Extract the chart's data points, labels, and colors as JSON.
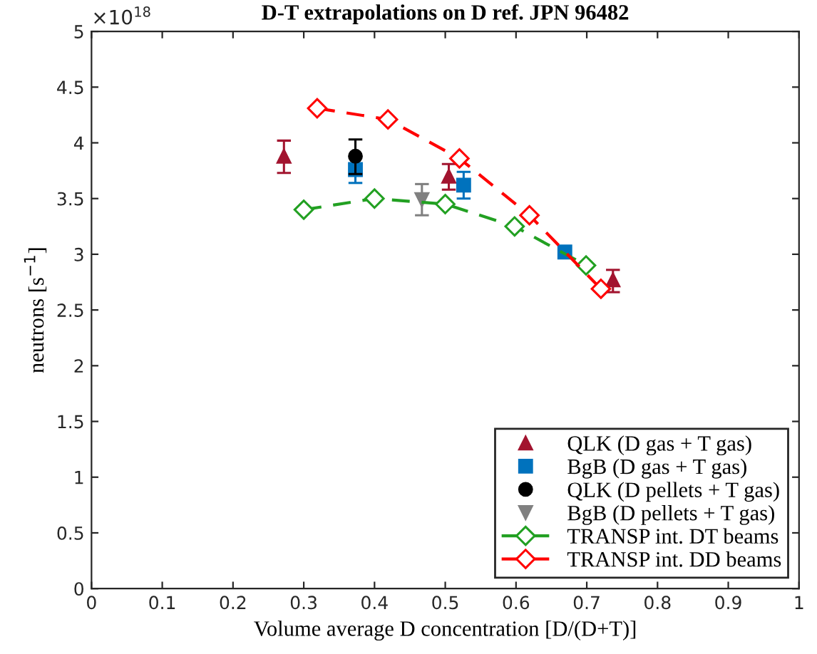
{
  "chart_data": {
    "type": "scatter",
    "title": "D-T extrapolations on D ref. JPN 96482",
    "xlabel": "Volume average D concentration [D/(D+T)]",
    "ylabel": "neutrons [s$^{−1}$]",
    "annotations": [
      "×10$^{18}$"
    ],
    "xlim": [
      0,
      1
    ],
    "xticks": [
      0,
      0.1,
      0.2,
      0.3,
      0.4,
      0.5,
      0.6,
      0.7,
      0.8,
      0.9,
      1
    ],
    "ylim": [
      0,
      5
    ],
    "yticks": [
      0,
      0.5,
      1,
      1.5,
      2,
      2.5,
      3,
      3.5,
      4,
      4.5,
      5
    ],
    "grid": false,
    "legend": "bottom right",
    "series": [
      {
        "name": "QLK (D gas + T gas)",
        "marker": "triangle",
        "color": "#a2142f",
        "x": [
          0.272,
          0.505,
          0.737
        ],
        "values": [
          3.88,
          3.7,
          2.77
        ],
        "errors": [
          [
            3.73,
            4.02
          ],
          [
            3.58,
            3.81
          ],
          [
            2.66,
            2.86
          ]
        ]
      },
      {
        "name": "BgB (D gas + T gas)",
        "marker": "square",
        "color": "#0072bd",
        "x": [
          0.373,
          0.526,
          0.669
        ],
        "values": [
          3.76,
          3.62,
          3.02
        ],
        "errors": [
          [
            3.64,
            3.76
          ],
          [
            3.5,
            3.74
          ],
          null
        ]
      },
      {
        "name": "QLK (D pellets + T gas)",
        "marker": "circle",
        "color": "#000000",
        "x": [
          0.373
        ],
        "values": [
          3.88
        ],
        "errors": [
          [
            3.72,
            4.03
          ]
        ]
      },
      {
        "name": "BgB (D pellets + T gas)",
        "marker": "triangle_down",
        "color": "#808080",
        "x": [
          0.467
        ],
        "values": [
          3.49
        ],
        "errors": [
          [
            3.35,
            3.63
          ]
        ]
      },
      {
        "name": "TRANSP int. DT beams",
        "type": "line",
        "marker": "diamond",
        "line_style": "dashed",
        "color": "#22a022",
        "x": [
          0.3,
          0.4,
          0.5,
          0.598,
          0.699
        ],
        "values": [
          3.4,
          3.5,
          3.45,
          3.25,
          2.9
        ]
      },
      {
        "name": "TRANSP int. DD beams",
        "type": "line",
        "marker": "diamond",
        "line_style": "dashed",
        "color": "#ff0000",
        "x": [
          0.319,
          0.419,
          0.52,
          0.619,
          0.72
        ],
        "values": [
          4.31,
          4.21,
          3.86,
          3.35,
          2.69
        ]
      }
    ]
  }
}
